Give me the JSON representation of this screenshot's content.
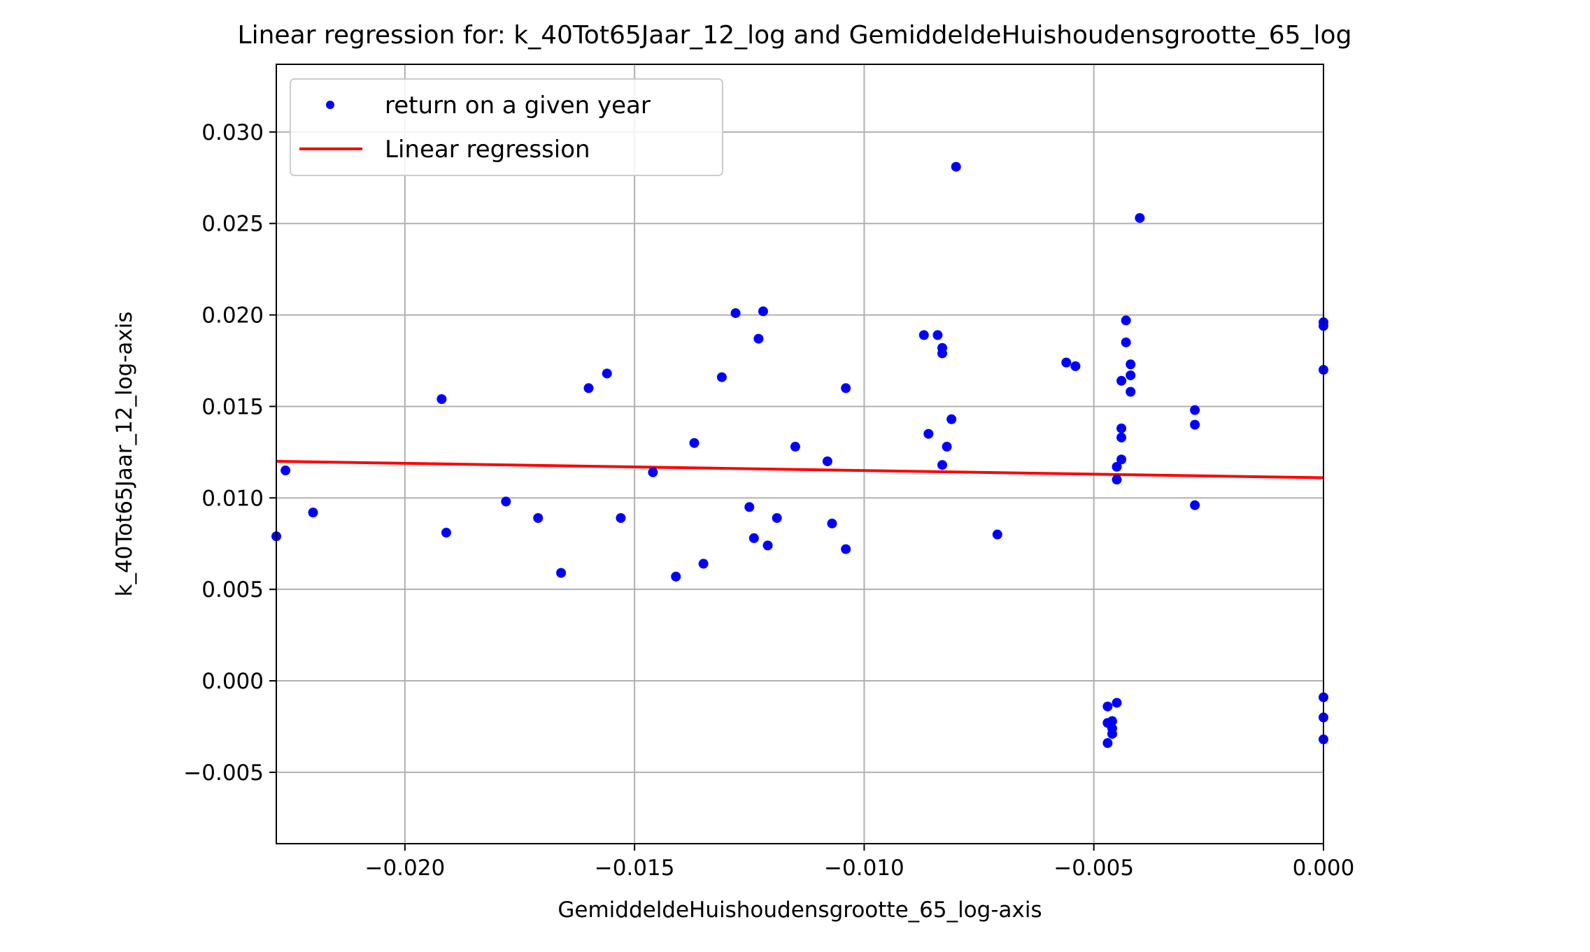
{
  "chart_data": {
    "type": "scatter",
    "title": "Linear regression for: k_40Tot65Jaar_12_log and GemiddeldeHuishoudensgrootte_65_log",
    "xlabel": "GemiddeldeHuishoudensgrootte_65_log-axis",
    "ylabel": "k_40Tot65Jaar_12_log-axis",
    "xlim": [
      -0.0228,
      0.0
    ],
    "ylim": [
      -0.0089,
      0.0337
    ],
    "x_ticks": [
      -0.02,
      -0.015,
      -0.01,
      -0.005,
      0.0
    ],
    "x_tick_labels": [
      "−0.020",
      "−0.015",
      "−0.010",
      "−0.005",
      "0.000"
    ],
    "y_ticks": [
      -0.005,
      0.0,
      0.005,
      0.01,
      0.015,
      0.02,
      0.025,
      0.03
    ],
    "y_tick_labels": [
      "−0.005",
      "0.000",
      "0.005",
      "0.010",
      "0.015",
      "0.020",
      "0.025",
      "0.030"
    ],
    "grid": true,
    "legend_position": "top-left",
    "colors": {
      "points": "#0000ff",
      "line": "#ff0000",
      "grid": "#b0b0b0"
    },
    "series": [
      {
        "name": "return on a given year",
        "kind": "scatter",
        "points": [
          [
            -0.0228,
            0.0079
          ],
          [
            -0.0226,
            0.0115
          ],
          [
            -0.022,
            0.0092
          ],
          [
            -0.0192,
            0.0154
          ],
          [
            -0.0191,
            0.0081
          ],
          [
            -0.0178,
            0.0098
          ],
          [
            -0.0171,
            0.0089
          ],
          [
            -0.0166,
            0.0059
          ],
          [
            -0.016,
            0.016
          ],
          [
            -0.0156,
            0.0168
          ],
          [
            -0.0153,
            0.0089
          ],
          [
            -0.0146,
            0.0114
          ],
          [
            -0.0141,
            0.0057
          ],
          [
            -0.0137,
            0.013
          ],
          [
            -0.0135,
            0.0064
          ],
          [
            -0.0131,
            0.0166
          ],
          [
            -0.0128,
            0.0201
          ],
          [
            -0.0125,
            0.0095
          ],
          [
            -0.0124,
            0.0078
          ],
          [
            -0.0123,
            0.0187
          ],
          [
            -0.0122,
            0.0202
          ],
          [
            -0.0121,
            0.0074
          ],
          [
            -0.0119,
            0.0089
          ],
          [
            -0.0115,
            0.0128
          ],
          [
            -0.0108,
            0.012
          ],
          [
            -0.0107,
            0.0086
          ],
          [
            -0.0104,
            0.0072
          ],
          [
            -0.0104,
            0.016
          ],
          [
            -0.0087,
            0.0189
          ],
          [
            -0.0086,
            0.0135
          ],
          [
            -0.0084,
            0.0189
          ],
          [
            -0.0083,
            0.0179
          ],
          [
            -0.0083,
            0.0118
          ],
          [
            -0.0083,
            0.0182
          ],
          [
            -0.0082,
            0.0128
          ],
          [
            -0.0081,
            0.0143
          ],
          [
            -0.008,
            0.0281
          ],
          [
            -0.0071,
            0.008
          ],
          [
            -0.0056,
            0.0174
          ],
          [
            -0.0054,
            0.0172
          ],
          [
            -0.0047,
            -0.0014
          ],
          [
            -0.0047,
            -0.0023
          ],
          [
            -0.0047,
            -0.0034
          ],
          [
            -0.0046,
            -0.0026
          ],
          [
            -0.0046,
            -0.0022
          ],
          [
            -0.0046,
            -0.0029
          ],
          [
            -0.0045,
            -0.0012
          ],
          [
            -0.0045,
            0.0117
          ],
          [
            -0.0045,
            0.011
          ],
          [
            -0.0044,
            0.0121
          ],
          [
            -0.0044,
            0.0133
          ],
          [
            -0.0044,
            0.0138
          ],
          [
            -0.0044,
            0.0164
          ],
          [
            -0.0043,
            0.0185
          ],
          [
            -0.0043,
            0.0197
          ],
          [
            -0.0042,
            0.0167
          ],
          [
            -0.0042,
            0.0158
          ],
          [
            -0.0042,
            0.0173
          ],
          [
            -0.004,
            0.0253
          ],
          [
            -0.0028,
            0.0148
          ],
          [
            -0.0028,
            0.014
          ],
          [
            -0.0028,
            0.0096
          ],
          [
            0.0,
            0.0196
          ],
          [
            0.0,
            0.0194
          ],
          [
            0.0,
            0.017
          ],
          [
            0.0,
            -0.0009
          ],
          [
            0.0,
            -0.002
          ],
          [
            0.0,
            -0.0032
          ]
        ]
      },
      {
        "name": "Linear regression",
        "kind": "line",
        "points": [
          [
            -0.0228,
            0.012
          ],
          [
            0.0,
            0.0111
          ]
        ]
      }
    ]
  }
}
